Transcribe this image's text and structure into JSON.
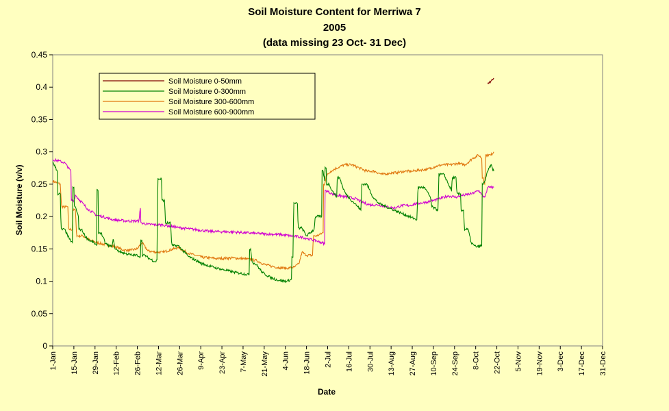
{
  "chart_data": {
    "type": "line",
    "title": "Soil Moisture Content for Merriwa 7",
    "subtitle": [
      "2005",
      "(data missing 23 Oct- 31 Dec)"
    ],
    "xlabel": "Date",
    "ylabel": "Soil Moisture (v/v)",
    "ylim": [
      0,
      0.45
    ],
    "yticks": [
      "0",
      "0.05",
      "0.1",
      "0.15",
      "0.2",
      "0.25",
      "0.3",
      "0.35",
      "0.4",
      "0.45"
    ],
    "xlim_day_of_year": [
      1,
      365
    ],
    "xtick_labels": [
      "1-Jan",
      "15-Jan",
      "29-Jan",
      "12-Feb",
      "26-Feb",
      "12-Mar",
      "26-Mar",
      "9-Apr",
      "23-Apr",
      "7-May",
      "21-May",
      "4-Jun",
      "18-Jun",
      "2-Jul",
      "16-Jul",
      "30-Jul",
      "13-Aug",
      "27-Aug",
      "10-Sep",
      "24-Sep",
      "8-Oct",
      "22-Oct",
      "5-Nov",
      "19-Nov",
      "3-Dec",
      "17-Dec",
      "31-Dec"
    ],
    "grid": false,
    "legend_position": "top-left",
    "background_color": "#ffffc0",
    "series": [
      {
        "name": "Soil Moisture 0-50mm",
        "color": "#800000",
        "x": [
          "16-Oct",
          "17-Oct",
          "18-Oct",
          "19-Oct",
          "20-Oct"
        ],
        "y": [
          0.405,
          0.407,
          0.409,
          0.412,
          0.414
        ]
      },
      {
        "name": "Soil Moisture 0-300mm",
        "color": "#008000",
        "x": [
          "1-Jan",
          "4-Jan",
          "6-Jan",
          "9-Jan",
          "12-Jan",
          "14-Jan",
          "15-Jan",
          "16-Jan",
          "18-Jan",
          "20-Jan",
          "23-Jan",
          "26-Jan",
          "28-Jan",
          "30-Jan",
          "31-Jan",
          "2-Feb",
          "5-Feb",
          "9-Feb",
          "10-Feb",
          "11-Feb",
          "13-Feb",
          "18-Feb",
          "23-Feb",
          "26-Feb",
          "28-Feb",
          "1-Mar",
          "3-Mar",
          "6-Mar",
          "10-Mar",
          "11-Mar",
          "14-Mar",
          "16-Mar",
          "20-Mar",
          "25-Mar",
          "1-Apr",
          "10-Apr",
          "20-Apr",
          "1-May",
          "11-May",
          "12-May",
          "13-May",
          "16-May",
          "20-May",
          "25-May",
          "31-May",
          "5-Jun",
          "8-Jun",
          "9-Jun",
          "12-Jun",
          "15-Jun",
          "18-Jun",
          "23-Jun",
          "28-Jun",
          "29-Jun",
          "30-Jun",
          "1-Jul",
          "3-Jul",
          "5-Jul",
          "8-Jul",
          "10-Jul",
          "12-Jul",
          "14-Jul",
          "17-Jul",
          "20-Jul",
          "22-Jul",
          "24-Jul",
          "28-Jul",
          "1-Aug",
          "5-Aug",
          "10-Aug",
          "15-Aug",
          "20-Aug",
          "25-Aug",
          "30-Aug",
          "4-Sep",
          "8-Sep",
          "9-Sep",
          "13-Sep",
          "17-Sep",
          "20-Sep",
          "22-Sep",
          "25-Sep",
          "28-Sep",
          "30-Sep",
          "3-Oct",
          "5-Oct",
          "7-Oct",
          "9-Oct",
          "12-Oct",
          "13-Oct",
          "14-Oct",
          "16-Oct",
          "18-Oct",
          "20-Oct"
        ],
        "y": [
          0.285,
          0.27,
          0.235,
          0.18,
          0.165,
          0.16,
          0.245,
          0.215,
          0.2,
          0.18,
          0.168,
          0.162,
          0.16,
          0.155,
          0.24,
          0.175,
          0.158,
          0.153,
          0.165,
          0.152,
          0.147,
          0.143,
          0.14,
          0.14,
          0.138,
          0.163,
          0.14,
          0.135,
          0.13,
          0.133,
          0.258,
          0.225,
          0.19,
          0.155,
          0.138,
          0.127,
          0.12,
          0.114,
          0.11,
          0.15,
          0.13,
          0.125,
          0.113,
          0.106,
          0.101,
          0.1,
          0.103,
          0.137,
          0.22,
          0.182,
          0.17,
          0.18,
          0.2,
          0.27,
          0.255,
          0.275,
          0.25,
          0.24,
          0.23,
          0.26,
          0.245,
          0.235,
          0.227,
          0.22,
          0.215,
          0.21,
          0.25,
          0.23,
          0.22,
          0.215,
          0.21,
          0.205,
          0.2,
          0.195,
          0.245,
          0.23,
          0.215,
          0.21,
          0.265,
          0.25,
          0.24,
          0.26,
          0.235,
          0.21,
          0.18,
          0.16,
          0.155,
          0.153,
          0.155,
          0.25,
          0.255,
          0.27,
          0.28,
          0.27
        ]
      },
      {
        "name": "Soil Moisture 300-600mm",
        "color": "#e07810",
        "x": [
          "1-Jan",
          "6-Jan",
          "11-Jan",
          "14-Jan",
          "16-Jan",
          "21-Jan",
          "26-Jan",
          "2-Feb",
          "12-Feb",
          "17-Feb",
          "22-Feb",
          "26-Feb",
          "1-Mar",
          "5-Mar",
          "10-Mar",
          "15-Mar",
          "25-Mar",
          "1-Apr",
          "10-Apr",
          "20-Apr",
          "1-May",
          "11-May",
          "16-May",
          "21-May",
          "26-May",
          "31-May",
          "5-Jun",
          "10-Jun",
          "13-Jun",
          "15-Jun",
          "18-Jun",
          "22-Jun",
          "25-Jun",
          "29-Jun",
          "30-Jun",
          "1-Jul",
          "4-Jul",
          "8-Jul",
          "13-Jul",
          "18-Jul",
          "23-Jul",
          "28-Jul",
          "2-Aug",
          "7-Aug",
          "12-Aug",
          "17-Aug",
          "22-Aug",
          "27-Aug",
          "1-Sep",
          "6-Sep",
          "11-Sep",
          "16-Sep",
          "21-Sep",
          "26-Sep",
          "1-Oct",
          "6-Oct",
          "10-Oct",
          "12-Oct",
          "13-Oct",
          "14-Oct",
          "18-Oct",
          "20-Oct"
        ],
        "y": [
          0.255,
          0.25,
          0.215,
          0.18,
          0.21,
          0.17,
          0.163,
          0.158,
          0.153,
          0.148,
          0.148,
          0.15,
          0.16,
          0.147,
          0.145,
          0.145,
          0.152,
          0.143,
          0.137,
          0.135,
          0.136,
          0.134,
          0.132,
          0.126,
          0.123,
          0.121,
          0.12,
          0.122,
          0.127,
          0.145,
          0.14,
          0.14,
          0.17,
          0.175,
          0.25,
          0.262,
          0.27,
          0.275,
          0.28,
          0.28,
          0.275,
          0.27,
          0.27,
          0.265,
          0.267,
          0.268,
          0.27,
          0.27,
          0.272,
          0.273,
          0.277,
          0.28,
          0.28,
          0.282,
          0.28,
          0.29,
          0.295,
          0.29,
          0.26,
          0.25,
          0.295,
          0.3
        ]
      },
      {
        "name": "Soil Moisture 600-900mm",
        "color": "#d000d0",
        "x": [
          "1-Jan",
          "5-Jan",
          "9-Jan",
          "13-Jan",
          "15-Jan",
          "16-Jan",
          "19-Jan",
          "24-Jan",
          "30-Jan",
          "3-Feb",
          "10-Feb",
          "20-Feb",
          "27-Feb",
          "28-Feb",
          "1-Mar",
          "5-Mar",
          "15-Mar",
          "25-Mar",
          "5-Apr",
          "15-Apr",
          "1-May",
          "15-May",
          "1-Jun",
          "15-Jun",
          "20-Jun",
          "25-Jun",
          "30-Jun",
          "1-Jul",
          "5-Jul",
          "10-Jul",
          "15-Jul",
          "20-Jul",
          "25-Jul",
          "30-Jul",
          "5-Aug",
          "10-Aug",
          "15-Aug",
          "20-Aug",
          "25-Aug",
          "30-Aug",
          "5-Sep",
          "10-Sep",
          "15-Sep",
          "20-Sep",
          "25-Sep",
          "30-Sep",
          "5-Oct",
          "10-Oct",
          "12-Oct",
          "13-Oct",
          "14-Oct",
          "16-Oct",
          "18-Oct",
          "20-Oct"
        ],
        "y": [
          0.288,
          0.286,
          0.283,
          0.27,
          0.225,
          0.233,
          0.225,
          0.212,
          0.202,
          0.2,
          0.195,
          0.193,
          0.193,
          0.213,
          0.19,
          0.188,
          0.187,
          0.183,
          0.18,
          0.177,
          0.176,
          0.174,
          0.172,
          0.168,
          0.165,
          0.162,
          0.158,
          0.24,
          0.235,
          0.232,
          0.23,
          0.228,
          0.222,
          0.218,
          0.218,
          0.215,
          0.213,
          0.217,
          0.217,
          0.22,
          0.222,
          0.225,
          0.228,
          0.232,
          0.23,
          0.233,
          0.235,
          0.24,
          0.235,
          0.23,
          0.23,
          0.245,
          0.245,
          0.245
        ]
      }
    ]
  }
}
